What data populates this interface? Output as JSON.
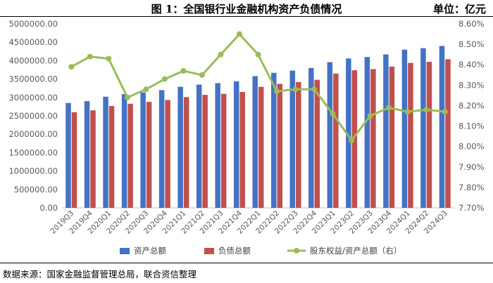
{
  "header": {
    "title": "图 1：全国银行业金融机构资产负债情况",
    "unit": "单位：亿元"
  },
  "footer": {
    "source": "数据来源：国家金融监督管理总局，联合资信整理"
  },
  "colors": {
    "assets": "#4472C4",
    "liabilities": "#C0504D",
    "ratio": "#9BBB59"
  },
  "chart_data": {
    "type": "bar",
    "categories": [
      "2019Q3",
      "2019Q4",
      "2020Q1",
      "2020Q2",
      "2020Q3",
      "2020Q4",
      "2021Q1",
      "2021Q2",
      "2021Q3",
      "2021Q4",
      "2022Q1",
      "2022Q2",
      "2022Q3",
      "2022Q4",
      "2023Q1",
      "2023Q2",
      "2023Q3",
      "2023Q4",
      "2024Q1",
      "2024Q2",
      "2024Q3"
    ],
    "series": [
      {
        "name": "资产总额",
        "type": "bar",
        "axis": "left",
        "values": [
          2850000,
          2900000,
          3020000,
          3090000,
          3140000,
          3200000,
          3290000,
          3350000,
          3390000,
          3440000,
          3580000,
          3670000,
          3730000,
          3800000,
          3960000,
          4060000,
          4100000,
          4170000,
          4300000,
          4340000,
          4400000
        ]
      },
      {
        "name": "负债总额",
        "type": "bar",
        "axis": "left",
        "values": [
          2600000,
          2650000,
          2770000,
          2830000,
          2880000,
          2930000,
          3010000,
          3070000,
          3100000,
          3150000,
          3290000,
          3370000,
          3420000,
          3480000,
          3650000,
          3740000,
          3770000,
          3840000,
          3940000,
          3970000,
          4040000
        ]
      },
      {
        "name": "股东权益/资产总额（右）",
        "type": "line",
        "axis": "right",
        "values": [
          8.39,
          8.44,
          8.43,
          8.24,
          8.28,
          8.33,
          8.37,
          8.35,
          8.45,
          8.55,
          8.45,
          8.27,
          8.28,
          8.28,
          8.16,
          8.03,
          8.15,
          8.19,
          8.17,
          8.18,
          8.17
        ]
      }
    ],
    "y_left": {
      "min": 0,
      "max": 5000000,
      "ticks": [
        "0.00",
        "500000.00",
        "1000000.00",
        "1500000.00",
        "2000000.00",
        "2500000.00",
        "3000000.00",
        "3500000.00",
        "4000000.00",
        "4500000.00",
        "5000000.00"
      ]
    },
    "y_right": {
      "min": 7.7,
      "max": 8.6,
      "ticks": [
        "7.70%",
        "7.80%",
        "7.90%",
        "8.00%",
        "8.10%",
        "8.20%",
        "8.30%",
        "8.40%",
        "8.50%",
        "8.60%"
      ]
    },
    "grid": false,
    "legend_position": "bottom"
  }
}
